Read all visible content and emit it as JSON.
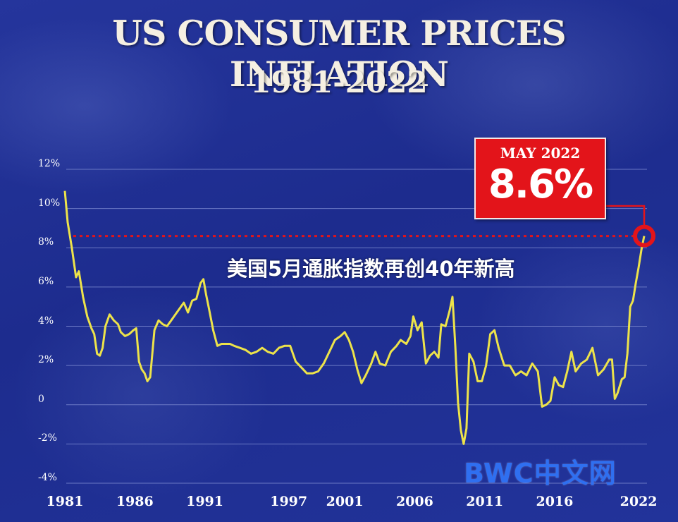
{
  "title": "US CONSUMER PRICES INFLATION",
  "subtitle": "1981-2022",
  "callout": {
    "date": "MAY 2022",
    "value": "8.6%"
  },
  "annotation": "美国5月通胀指数再创40年新高",
  "watermark": "BWC中文网",
  "colors": {
    "line": "#ede34a",
    "callout": "#e3141a",
    "reference": "#e3141a",
    "grid": "#6a78c4"
  },
  "chart_data": {
    "type": "line",
    "title": "US CONSUMER PRICES INFLATION",
    "subtitle": "1981-2022",
    "xlabel": "",
    "ylabel": "",
    "ylim": [
      -4,
      12
    ],
    "xlim": [
      1981,
      2022.6
    ],
    "y_ticks": [
      {
        "value": 12,
        "label": "12%"
      },
      {
        "value": 10,
        "label": "10%"
      },
      {
        "value": 8,
        "label": "8%"
      },
      {
        "value": 6,
        "label": "6%"
      },
      {
        "value": 4,
        "label": "4%"
      },
      {
        "value": 2,
        "label": "2%"
      },
      {
        "value": 0,
        "label": "0"
      },
      {
        "value": -2,
        "label": "-2%"
      },
      {
        "value": -4,
        "label": "-4%"
      }
    ],
    "x_ticks": [
      {
        "value": 1981,
        "label": "1981"
      },
      {
        "value": 1986,
        "label": "1986"
      },
      {
        "value": 1991,
        "label": "1991"
      },
      {
        "value": 1997,
        "label": "1997"
      },
      {
        "value": 2001,
        "label": "2001"
      },
      {
        "value": 2006,
        "label": "2006"
      },
      {
        "value": 2011,
        "label": "2011"
      },
      {
        "value": 2016,
        "label": "2016"
      },
      {
        "value": 2022,
        "label": "2022"
      }
    ],
    "grid": true,
    "reference_line": 8.6,
    "highlight": {
      "x": 2022.4,
      "y": 8.6
    },
    "series": [
      {
        "name": "",
        "x": [
          1981.0,
          1981.2,
          1981.5,
          1981.8,
          1982.0,
          1982.3,
          1982.6,
          1982.9,
          1983.1,
          1983.3,
          1983.5,
          1983.7,
          1983.9,
          1984.2,
          1984.5,
          1984.8,
          1985.0,
          1985.3,
          1985.6,
          1985.9,
          1986.1,
          1986.3,
          1986.5,
          1986.7,
          1986.9,
          1987.1,
          1987.4,
          1987.7,
          1988.0,
          1988.3,
          1988.6,
          1988.9,
          1989.2,
          1989.5,
          1989.8,
          1990.1,
          1990.4,
          1990.7,
          1990.9,
          1991.1,
          1991.3,
          1991.6,
          1991.9,
          1992.2,
          1992.5,
          1992.8,
          1993.1,
          1993.5,
          1993.9,
          1994.3,
          1994.7,
          1995.1,
          1995.5,
          1995.9,
          1996.3,
          1996.7,
          1997.1,
          1997.5,
          1997.9,
          1998.3,
          1998.7,
          1999.1,
          1999.5,
          1999.9,
          2000.3,
          2000.7,
          2001.0,
          2001.3,
          2001.6,
          2001.9,
          2002.2,
          2002.5,
          2002.9,
          2003.2,
          2003.5,
          2003.9,
          2004.3,
          2004.7,
          2005.0,
          2005.4,
          2005.7,
          2005.9,
          2006.2,
          2006.5,
          2006.8,
          2007.1,
          2007.4,
          2007.7,
          2007.9,
          2008.2,
          2008.5,
          2008.7,
          2008.9,
          2009.1,
          2009.3,
          2009.5,
          2009.7,
          2009.9,
          2010.2,
          2010.5,
          2010.8,
          2011.1,
          2011.4,
          2011.7,
          2012.0,
          2012.4,
          2012.8,
          2013.2,
          2013.6,
          2014.0,
          2014.4,
          2014.8,
          2015.1,
          2015.4,
          2015.7,
          2016.0,
          2016.3,
          2016.6,
          2016.9,
          2017.2,
          2017.5,
          2017.9,
          2018.3,
          2018.7,
          2019.1,
          2019.5,
          2019.9,
          2020.1,
          2020.3,
          2020.5,
          2020.8,
          2021.0,
          2021.2,
          2021.4,
          2021.6,
          2021.8,
          2022.0,
          2022.2,
          2022.4
        ],
        "y": [
          10.9,
          9.3,
          8.0,
          6.5,
          6.8,
          5.5,
          4.5,
          3.9,
          3.6,
          2.6,
          2.5,
          2.9,
          4.0,
          4.6,
          4.3,
          4.1,
          3.7,
          3.5,
          3.6,
          3.8,
          3.9,
          2.2,
          1.8,
          1.6,
          1.2,
          1.4,
          3.8,
          4.3,
          4.1,
          4.0,
          4.3,
          4.6,
          4.9,
          5.2,
          4.7,
          5.3,
          5.4,
          6.2,
          6.4,
          5.6,
          4.9,
          3.8,
          3.0,
          3.1,
          3.1,
          3.1,
          3.0,
          2.9,
          2.8,
          2.6,
          2.7,
          2.9,
          2.7,
          2.6,
          2.9,
          3.0,
          3.0,
          2.2,
          1.9,
          1.6,
          1.6,
          1.7,
          2.1,
          2.7,
          3.3,
          3.5,
          3.7,
          3.3,
          2.7,
          1.8,
          1.1,
          1.5,
          2.1,
          2.7,
          2.1,
          2.0,
          2.7,
          3.0,
          3.3,
          3.1,
          3.5,
          4.5,
          3.8,
          4.2,
          2.1,
          2.5,
          2.7,
          2.4,
          4.1,
          4.0,
          4.8,
          5.5,
          3.0,
          0.1,
          -1.3,
          -2.0,
          -1.2,
          2.6,
          2.2,
          1.2,
          1.2,
          2.0,
          3.6,
          3.8,
          2.9,
          2.0,
          2.0,
          1.5,
          1.7,
          1.5,
          2.1,
          1.7,
          -0.1,
          0.0,
          0.2,
          1.4,
          1.0,
          0.9,
          1.7,
          2.7,
          1.7,
          2.1,
          2.3,
          2.9,
          1.5,
          1.8,
          2.3,
          2.3,
          0.3,
          0.6,
          1.3,
          1.4,
          2.6,
          5.0,
          5.3,
          6.2,
          7.0,
          7.9,
          8.6
        ]
      }
    ]
  }
}
